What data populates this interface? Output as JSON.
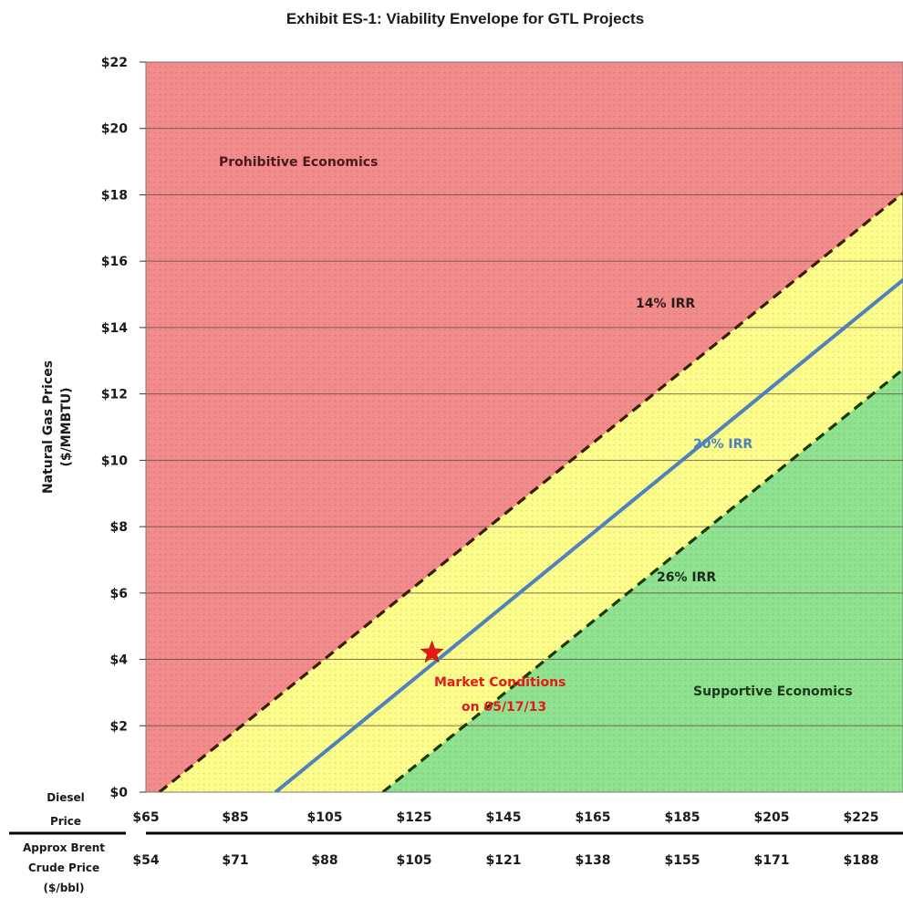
{
  "chart_data": {
    "type": "line",
    "title": "Exhibit ES-1: Viability Envelope for GTL Projects",
    "ylabel_line1": "Natural Gas Prices",
    "ylabel_line2": "($/MMBTU)",
    "ylim": [
      0,
      22
    ],
    "xlim": [
      65,
      245
    ],
    "y_ticks": [
      "$0",
      "$2",
      "$4",
      "$6",
      "$8",
      "$10",
      "$12",
      "$14",
      "$16",
      "$18",
      "$20",
      "$22"
    ],
    "x_axis_label": [
      "Diesel",
      "Price"
    ],
    "x_ticks": [
      "$65",
      "$85",
      "$105",
      "$125",
      "$145",
      "$165",
      "$185",
      "$205",
      "$225"
    ],
    "x2_axis_label": [
      "Approx Brent",
      "Crude Price",
      "($/bbl)"
    ],
    "x2_ticks": [
      "$54",
      "$71",
      "$88",
      "$105",
      "$121",
      "$138",
      "$155",
      "$171",
      "$188"
    ],
    "grid": true,
    "series": [
      {
        "name": "14% IRR",
        "style": "dashed",
        "color": "#3a1c00",
        "x": [
          68,
          245
        ],
        "y": [
          0,
          19.2
        ]
      },
      {
        "name": "20% IRR",
        "style": "solid",
        "color": "#4f81bd",
        "x": [
          94,
          245
        ],
        "y": [
          0,
          16.6
        ]
      },
      {
        "name": "26% IRR",
        "style": "dashed",
        "color": "#1a3a00",
        "x": [
          118,
          245
        ],
        "y": [
          0,
          13.9
        ]
      }
    ],
    "regions": [
      {
        "label": "Prohibitive Economics",
        "color": "#f08080"
      },
      {
        "label": "Supportive Economics",
        "color": "#8ee08e"
      }
    ],
    "annotations": [
      {
        "label": "Market Conditions",
        "label2": "on 05/17/13",
        "x": 129,
        "y": 4.2,
        "marker": "star",
        "color": "#e31a1a"
      }
    ],
    "colors": {
      "red_zone": "#f28b8b",
      "yellow_zone": "#fdfd8c",
      "green_zone": "#8fe28f",
      "gridline": "#5a3a3a"
    }
  }
}
